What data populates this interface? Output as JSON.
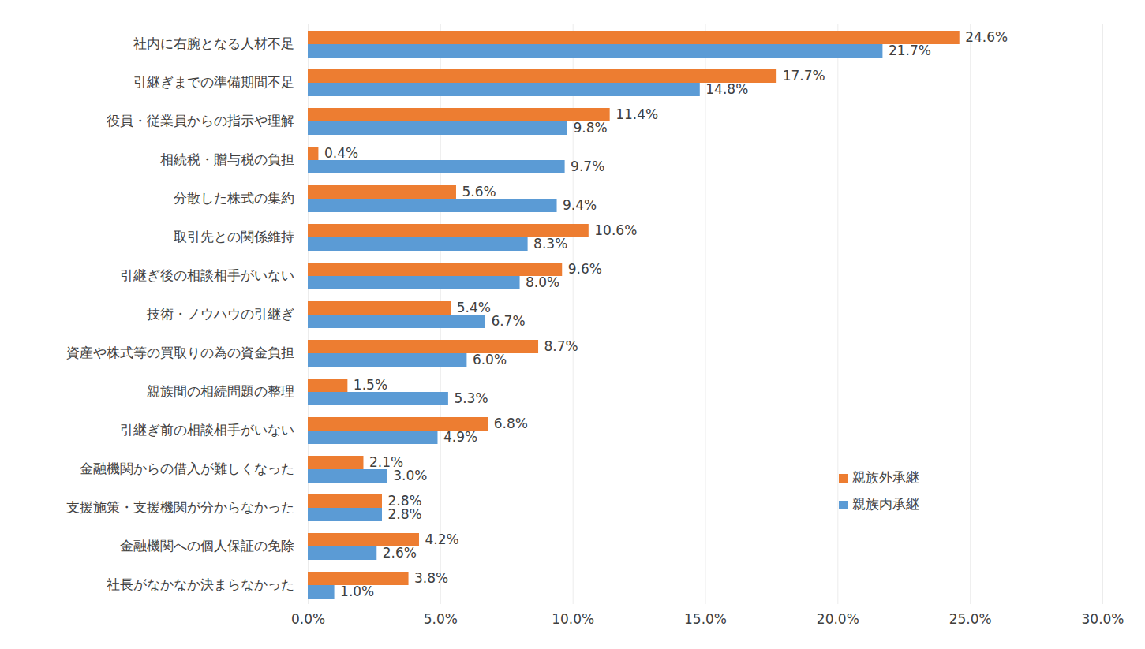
{
  "chart_data": {
    "type": "bar",
    "orientation": "horizontal",
    "categories": [
      "社内に右腕となる人材不足",
      "引継ぎまでの準備期間不足",
      "役員・従業員からの指示や理解",
      "相続税・贈与税の負担",
      "分散した株式の集約",
      "取引先との関係維持",
      "引継ぎ後の相談相手がいない",
      "技術・ノウハウの引継ぎ",
      "資産や株式等の買取りの為の資金負担",
      "親族間の相続問題の整理",
      "引継ぎ前の相談相手がいない",
      "金融機関からの借入が難しくなった",
      "支援施策・支援機関が分からなかった",
      "金融機関への個人保証の免除",
      "社長がなかなか決まらなかった"
    ],
    "series": [
      {
        "name": "親族外承継",
        "color": "#ed7d31",
        "values": [
          24.6,
          17.7,
          11.4,
          0.4,
          5.6,
          10.6,
          9.6,
          5.4,
          8.7,
          1.5,
          6.8,
          2.1,
          2.8,
          4.2,
          3.8
        ],
        "value_labels": [
          "24.6%",
          "17.7%",
          "11.4%",
          "0.4%",
          "5.6%",
          "10.6%",
          "9.6%",
          "5.4%",
          "8.7%",
          "1.5%",
          "6.8%",
          "2.1%",
          "2.8%",
          "4.2%",
          "3.8%"
        ]
      },
      {
        "name": "親族内承継",
        "color": "#5b9bd5",
        "values": [
          21.7,
          14.8,
          9.8,
          9.7,
          9.4,
          8.3,
          8.0,
          6.7,
          6.0,
          5.3,
          4.9,
          3.0,
          2.8,
          2.6,
          1.0
        ],
        "value_labels": [
          "21.7%",
          "14.8%",
          "9.8%",
          "9.7%",
          "9.4%",
          "8.3%",
          "8.0%",
          "6.7%",
          "6.0%",
          "5.3%",
          "4.9%",
          "3.0%",
          "2.8%",
          "2.6%",
          "1.0%"
        ]
      }
    ],
    "xlim": [
      0,
      30
    ],
    "xticks": [
      {
        "value": 0,
        "label": "0.0%"
      },
      {
        "value": 5,
        "label": "5.0%"
      },
      {
        "value": 10,
        "label": "10.0%"
      },
      {
        "value": 15,
        "label": "15.0%"
      },
      {
        "value": 20,
        "label": "20.0%"
      },
      {
        "value": 25,
        "label": "25.0%"
      },
      {
        "value": 30,
        "label": "30.0%"
      }
    ],
    "grid": true,
    "legend": "right",
    "data_labels": true
  }
}
